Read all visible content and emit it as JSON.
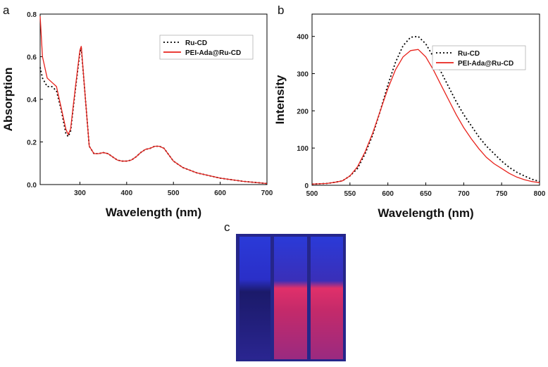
{
  "chart_data": [
    {
      "type": "line",
      "panel": "a",
      "x_label": "Wavelength (nm)",
      "y_label": "Absorption",
      "xlim": [
        215,
        700
      ],
      "xticks": [
        300,
        400,
        500,
        600,
        700
      ],
      "ylim": [
        0,
        0.8
      ],
      "yticks": [
        {
          "value": 0,
          "label": "0.0"
        },
        0.2,
        0.4,
        0.6,
        0.8
      ],
      "legend": "upper right",
      "x": [
        215,
        220,
        230,
        240,
        250,
        260,
        270,
        275,
        280,
        290,
        300,
        303,
        310,
        320,
        330,
        340,
        350,
        360,
        370,
        380,
        390,
        400,
        410,
        420,
        430,
        440,
        450,
        460,
        470,
        480,
        490,
        500,
        520,
        550,
        600,
        650,
        700
      ],
      "series": [
        {
          "name": "Ru-CD",
          "color": "#000000",
          "style": "dotted",
          "values": [
            0.55,
            0.5,
            0.46,
            0.46,
            0.44,
            0.35,
            0.24,
            0.225,
            0.25,
            0.44,
            0.62,
            0.64,
            0.45,
            0.18,
            0.145,
            0.145,
            0.15,
            0.145,
            0.13,
            0.115,
            0.11,
            0.11,
            0.115,
            0.13,
            0.15,
            0.165,
            0.17,
            0.18,
            0.18,
            0.17,
            0.14,
            0.11,
            0.08,
            0.055,
            0.03,
            0.015,
            0.005
          ]
        },
        {
          "name": "PEI-Ada@Ru-CD",
          "color": "#e8221c",
          "style": "solid",
          "values": [
            0.79,
            0.6,
            0.5,
            0.48,
            0.46,
            0.36,
            0.26,
            0.235,
            0.26,
            0.45,
            0.63,
            0.65,
            0.45,
            0.18,
            0.145,
            0.145,
            0.15,
            0.145,
            0.13,
            0.115,
            0.11,
            0.11,
            0.115,
            0.13,
            0.15,
            0.165,
            0.17,
            0.18,
            0.18,
            0.17,
            0.14,
            0.11,
            0.08,
            0.055,
            0.03,
            0.015,
            0.005
          ]
        }
      ]
    },
    {
      "type": "line",
      "panel": "b",
      "x_label": "Wavelength (nm)",
      "y_label": "Intensity",
      "xlim": [
        500,
        800
      ],
      "xticks": [
        500,
        550,
        600,
        650,
        700,
        750,
        800
      ],
      "ylim": [
        0,
        460
      ],
      "yticks": [
        0,
        100,
        200,
        300,
        400
      ],
      "legend": "upper right",
      "x": [
        500,
        510,
        520,
        530,
        540,
        550,
        560,
        570,
        580,
        590,
        600,
        610,
        620,
        630,
        640,
        650,
        660,
        670,
        680,
        690,
        700,
        710,
        720,
        730,
        740,
        750,
        760,
        770,
        780,
        790,
        800
      ],
      "series": [
        {
          "name": "Ru-CD",
          "color": "#000000",
          "style": "dotted",
          "values": [
            3,
            4,
            5,
            8,
            12,
            25,
            45,
            85,
            135,
            200,
            270,
            330,
            375,
            398,
            400,
            380,
            345,
            305,
            265,
            225,
            190,
            160,
            130,
            105,
            85,
            65,
            48,
            35,
            25,
            16,
            10
          ]
        },
        {
          "name": "PEI-Ada@Ru-CD",
          "color": "#e8221c",
          "style": "solid",
          "values": [
            3,
            4,
            5,
            8,
            12,
            25,
            50,
            90,
            140,
            200,
            260,
            310,
            345,
            362,
            365,
            345,
            310,
            270,
            230,
            190,
            155,
            125,
            98,
            75,
            58,
            45,
            32,
            22,
            15,
            10,
            7
          ]
        }
      ]
    }
  ],
  "photo": {
    "panel": "c"
  }
}
